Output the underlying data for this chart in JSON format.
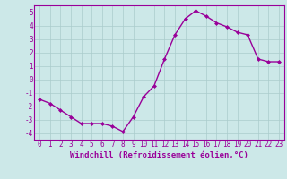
{
  "x": [
    0,
    1,
    2,
    3,
    4,
    5,
    6,
    7,
    8,
    9,
    10,
    11,
    12,
    13,
    14,
    15,
    16,
    17,
    18,
    19,
    20,
    21,
    22,
    23
  ],
  "y": [
    -1.5,
    -1.8,
    -2.3,
    -2.8,
    -3.3,
    -3.3,
    -3.3,
    -3.5,
    -3.9,
    -2.8,
    -1.3,
    -0.5,
    1.5,
    3.3,
    4.5,
    5.1,
    4.7,
    4.2,
    3.9,
    3.5,
    3.3,
    1.5,
    1.3,
    1.3
  ],
  "line_color": "#990099",
  "marker": "D",
  "marker_size": 2.0,
  "bg_color": "#cce8e8",
  "grid_color": "#aacccc",
  "xlabel": "Windchill (Refroidissement éolien,°C)",
  "ylabel": "",
  "title": "",
  "xlim": [
    -0.5,
    23.5
  ],
  "ylim": [
    -4.5,
    5.5
  ],
  "yticks": [
    -4,
    -3,
    -2,
    -1,
    0,
    1,
    2,
    3,
    4,
    5
  ],
  "xticks": [
    0,
    1,
    2,
    3,
    4,
    5,
    6,
    7,
    8,
    9,
    10,
    11,
    12,
    13,
    14,
    15,
    16,
    17,
    18,
    19,
    20,
    21,
    22,
    23
  ],
  "tick_color": "#990099",
  "tick_fontsize": 5.5,
  "xlabel_fontsize": 6.5,
  "line_width": 1.0
}
